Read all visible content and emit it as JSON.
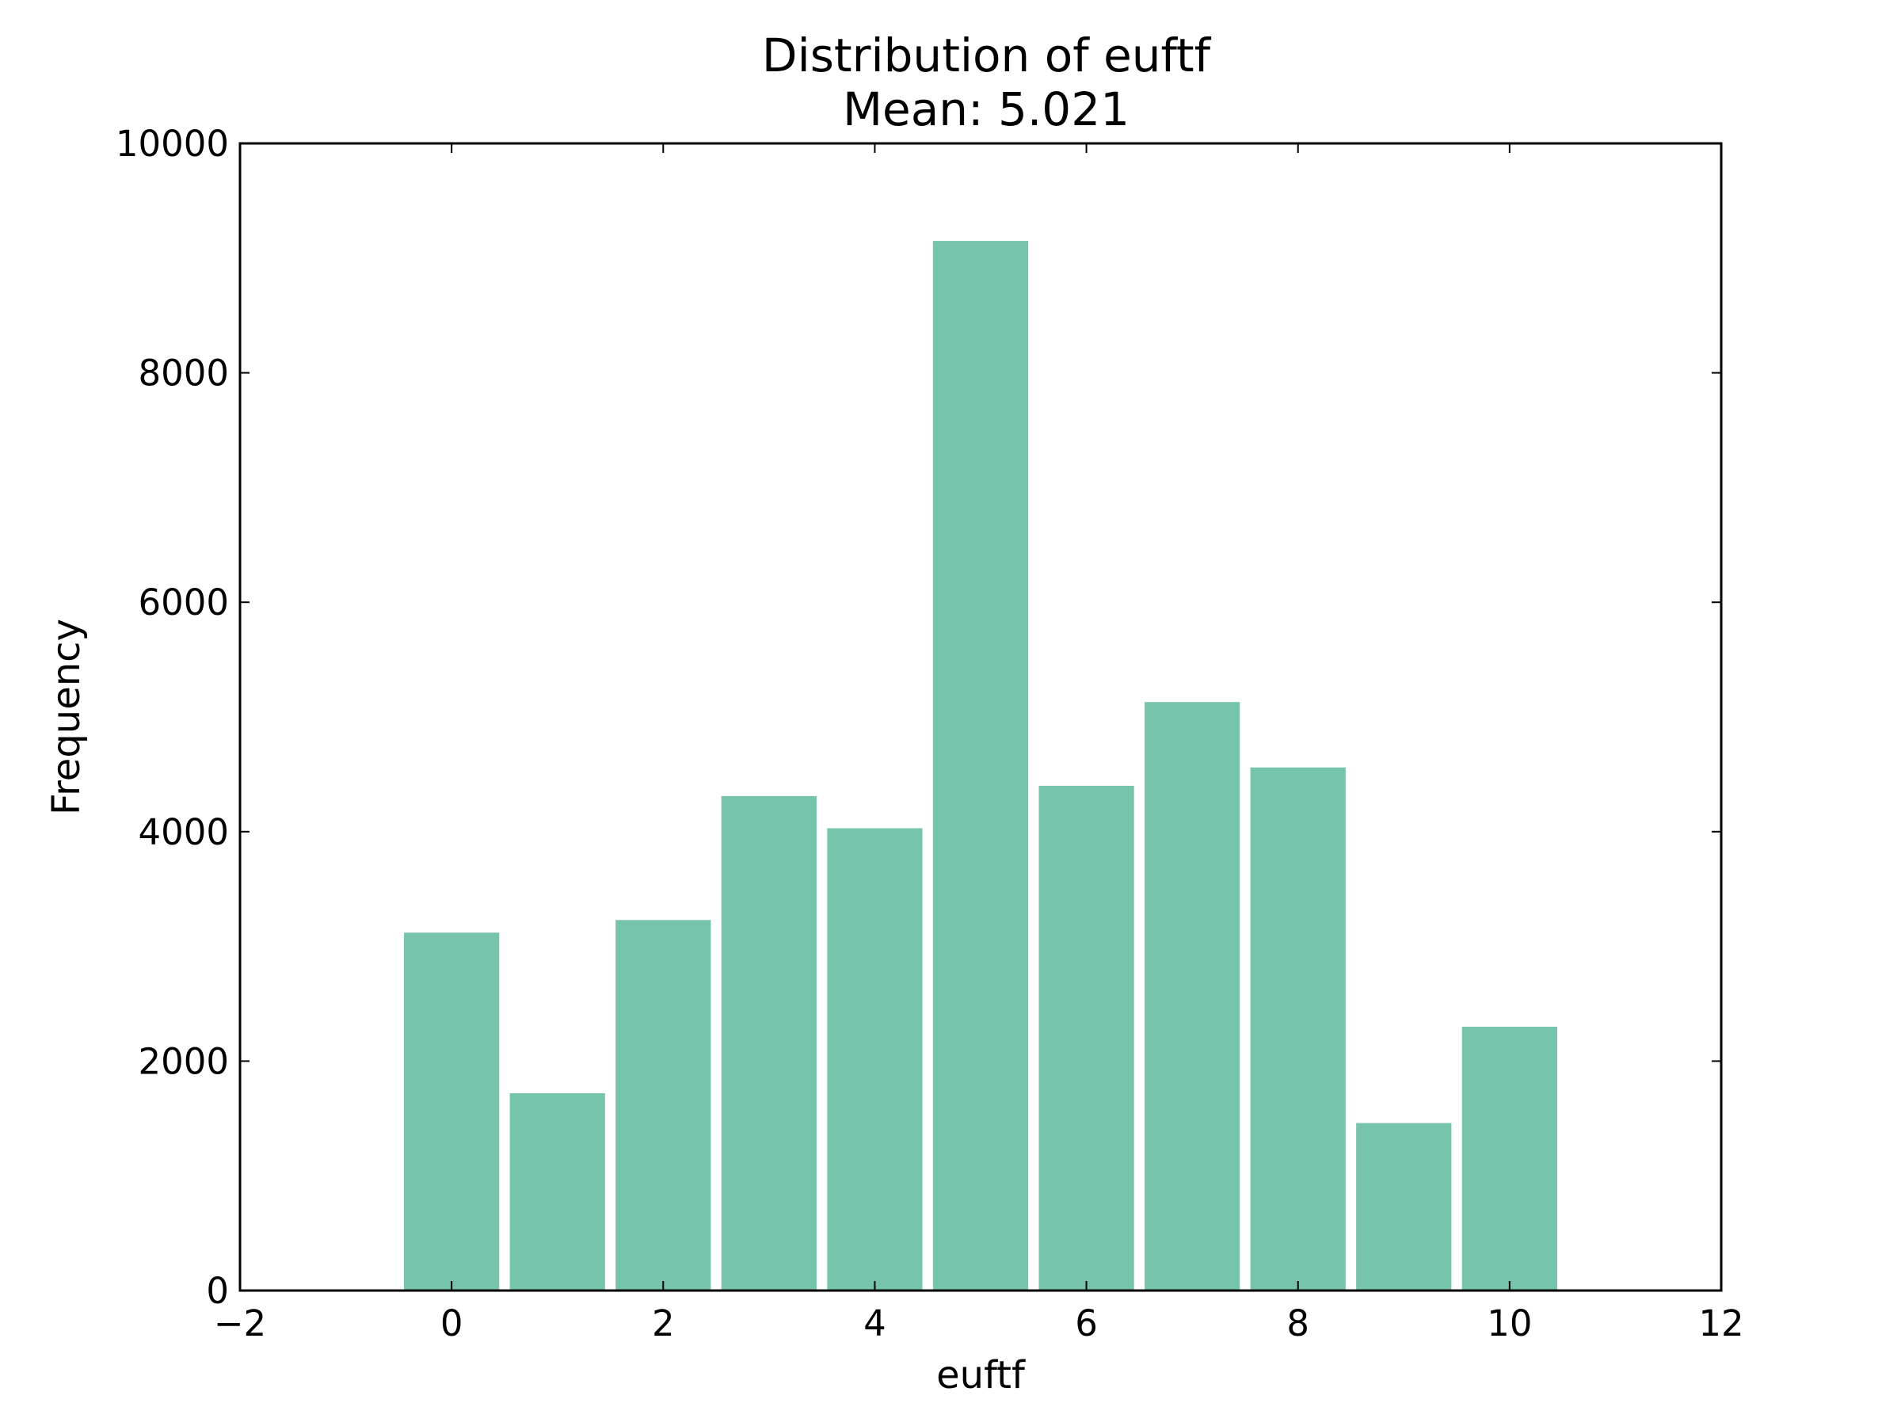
{
  "chart_data": {
    "type": "bar",
    "title": "Distribution of euftf",
    "subtitle": "Mean: 5.021",
    "xlabel": "euftf",
    "ylabel": "Frequency",
    "x": [
      0,
      1,
      2,
      3,
      4,
      5,
      6,
      7,
      8,
      9,
      10
    ],
    "values": [
      3120,
      1720,
      3230,
      4310,
      4030,
      9150,
      4400,
      5130,
      4560,
      1460,
      2300
    ],
    "bar_width": 0.9,
    "xlim": [
      -2,
      12
    ],
    "ylim": [
      0,
      10000
    ],
    "xticks": [
      -2,
      0,
      2,
      4,
      6,
      8,
      10,
      12
    ],
    "xtick_labels": [
      "−2",
      "0",
      "2",
      "4",
      "6",
      "8",
      "10",
      "12"
    ],
    "yticks": [
      0,
      2000,
      4000,
      6000,
      8000,
      10000
    ],
    "ytick_labels": [
      "0",
      "2000",
      "4000",
      "6000",
      "8000",
      "10000"
    ],
    "bar_color": "#77c4ad",
    "grid": false,
    "legend": "none"
  }
}
